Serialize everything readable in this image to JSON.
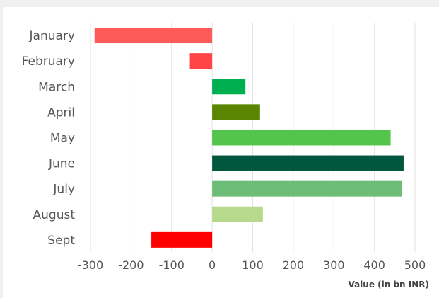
{
  "chart_data": {
    "type": "bar",
    "orientation": "horizontal",
    "categories": [
      "January",
      "February",
      "March",
      "April",
      "May",
      "June",
      "July",
      "August",
      "Sept"
    ],
    "values": [
      -290,
      -55,
      82,
      118,
      440,
      472,
      468,
      125,
      -150
    ],
    "bar_colors": [
      "#ff5a5a",
      "#ff4545",
      "#00b050",
      "#5a8500",
      "#52c54a",
      "#00573d",
      "#6dbd78",
      "#b6d98c",
      "#ff0000"
    ],
    "xlim": [
      -300,
      500
    ],
    "x_ticks": [
      "-300",
      "-200",
      "-100",
      "0",
      "100",
      "200",
      "300",
      "400",
      "500"
    ],
    "xlabel": "Value (in bn INR)",
    "ylabel": "",
    "title": "",
    "grid": true
  }
}
